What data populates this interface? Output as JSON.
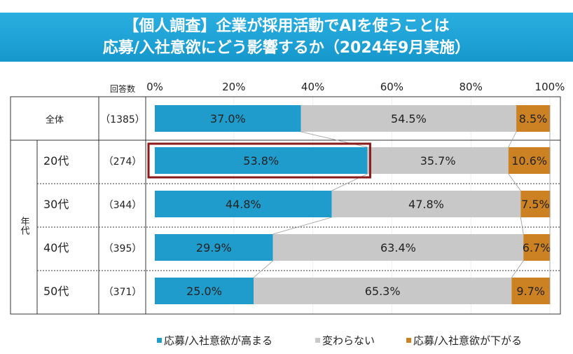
{
  "title": {
    "line1": "【個人調査】企業が採用活動でAIを使うことは",
    "line2": "応募/入社意欲にどう影響するか（2024年9月実施）"
  },
  "table": {
    "count_header": "回答数",
    "group_label": "年代"
  },
  "chart_data": {
    "type": "bar",
    "orientation": "horizontal",
    "stacked": "100%",
    "title": "【個人調査】企業が採用活動でAIを使うことは応募/入社意欲にどう影響するか（2024年9月実施）",
    "xlim": [
      0,
      100
    ],
    "x_ticks": [
      "0%",
      "20%",
      "40%",
      "60%",
      "80%",
      "100%"
    ],
    "categories": [
      "全体",
      "20代",
      "30代",
      "40代",
      "50代"
    ],
    "counts": [
      "（1385）",
      "（274）",
      "（344）",
      "（395）",
      "（371）"
    ],
    "series": [
      {
        "name": "応募/入社意欲が高まる",
        "color": "#1f9ccc",
        "values": [
          37.0,
          53.8,
          44.8,
          29.9,
          25.0
        ],
        "labels": [
          "37.0%",
          "53.8%",
          "44.8%",
          "29.9%",
          "25.0%"
        ]
      },
      {
        "name": "変わらない",
        "color": "#c8c8c8",
        "values": [
          54.5,
          35.7,
          47.8,
          63.4,
          65.3
        ],
        "labels": [
          "54.5%",
          "35.7%",
          "47.8%",
          "63.4%",
          "65.3%"
        ]
      },
      {
        "name": "応募/入社意欲が下がる",
        "color": "#cc8122",
        "values": [
          8.5,
          10.6,
          7.5,
          6.7,
          9.7
        ],
        "labels": [
          "8.5%",
          "10.6%",
          "7.5%",
          "6.7%",
          "9.7%"
        ]
      }
    ],
    "highlight": {
      "category": "20代",
      "series": "応募/入社意欲が高まる",
      "color": "#8b1a1a"
    },
    "legend": "bottom",
    "series_lines": true,
    "grid": true
  }
}
